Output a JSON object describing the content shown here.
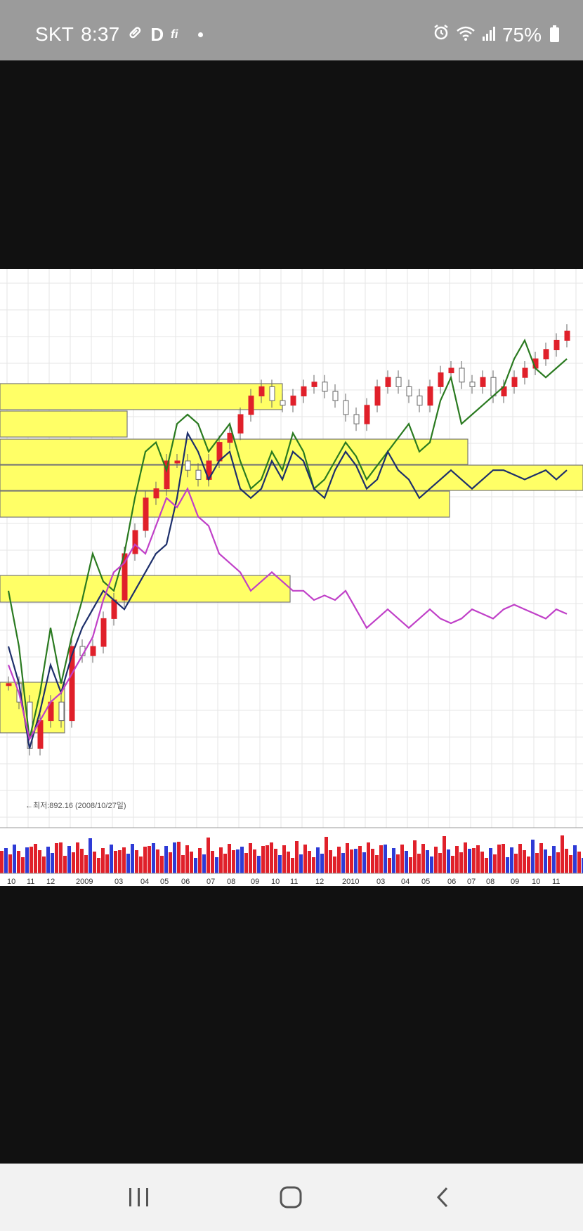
{
  "status_bar": {
    "carrier": "SKT",
    "time": "8:37",
    "letter_icon": "D",
    "fi_icon": "fi",
    "battery": "75%",
    "icons": [
      "link-icon",
      "d-app-icon",
      "fi-icon",
      "dot-icon",
      "alarm-icon",
      "wifi-icon",
      "signal-icon",
      "battery-icon"
    ]
  },
  "colors": {
    "up_candle": "#e0202a",
    "down_candle": "#2e3bd6",
    "highlight": "#ffff66",
    "line_green": "#2a7a20",
    "line_navy": "#1d2f6b",
    "line_magenta": "#c040c8"
  },
  "chart_data": {
    "type": "line",
    "annotation": "←최저:892.16 (2008/10/27일)",
    "x_tick_labels": [
      "10",
      "11",
      "12",
      "2009",
      "03",
      "04",
      "05",
      "06",
      "07",
      "08",
      "09",
      "10",
      "11",
      "12",
      "2010",
      "03",
      "04",
      "05",
      "06",
      "07",
      "08",
      "09",
      "10",
      "11"
    ],
    "series": [
      {
        "values": [
          0.22,
          0.18,
          0.08,
          0.14,
          0.18,
          0.14,
          0.3,
          0.28,
          0.3,
          0.36,
          0.4,
          0.5,
          0.55,
          0.62,
          0.64,
          0.7,
          0.7,
          0.68,
          0.66,
          0.7,
          0.74,
          0.76,
          0.8,
          0.84,
          0.86,
          0.83,
          0.82,
          0.84,
          0.86,
          0.87,
          0.85,
          0.83,
          0.8,
          0.78,
          0.82,
          0.86,
          0.88,
          0.86,
          0.84,
          0.82,
          0.86,
          0.89,
          0.9,
          0.87,
          0.86,
          0.88,
          0.84,
          0.86,
          0.88,
          0.9,
          0.92,
          0.94,
          0.96,
          0.98
        ]
      },
      {
        "values": [
          0.42,
          0.3,
          0.1,
          0.2,
          0.34,
          0.22,
          0.32,
          0.4,
          0.5,
          0.44,
          0.42,
          0.5,
          0.62,
          0.72,
          0.74,
          0.68,
          0.78,
          0.8,
          0.78,
          0.72,
          0.75,
          0.78,
          0.7,
          0.64,
          0.66,
          0.72,
          0.68,
          0.76,
          0.72,
          0.64,
          0.66,
          0.7,
          0.74,
          0.71,
          0.66,
          0.69,
          0.72,
          0.75,
          0.78,
          0.72,
          0.74,
          0.83,
          0.88,
          0.78,
          0.8,
          0.82,
          0.84,
          0.86,
          0.92,
          0.96,
          0.9,
          0.88,
          0.9,
          0.92
        ]
      },
      {
        "values": [
          0.3,
          0.22,
          0.08,
          0.16,
          0.26,
          0.2,
          0.28,
          0.34,
          0.38,
          0.42,
          0.4,
          0.38,
          0.42,
          0.46,
          0.5,
          0.52,
          0.62,
          0.76,
          0.72,
          0.66,
          0.7,
          0.72,
          0.64,
          0.62,
          0.64,
          0.7,
          0.66,
          0.72,
          0.7,
          0.64,
          0.62,
          0.68,
          0.72,
          0.69,
          0.64,
          0.66,
          0.72,
          0.68,
          0.66,
          0.62,
          0.64,
          0.66,
          0.68,
          0.66,
          0.64,
          0.66,
          0.68,
          0.68,
          0.67,
          0.66,
          0.67,
          0.68,
          0.66,
          0.68
        ]
      },
      {
        "values": [
          0.26,
          0.2,
          0.1,
          0.14,
          0.18,
          0.2,
          0.24,
          0.28,
          0.32,
          0.4,
          0.46,
          0.48,
          0.52,
          0.5,
          0.56,
          0.62,
          0.6,
          0.64,
          0.58,
          0.56,
          0.5,
          0.48,
          0.46,
          0.42,
          0.44,
          0.46,
          0.44,
          0.42,
          0.42,
          0.4,
          0.41,
          0.4,
          0.42,
          0.38,
          0.34,
          0.36,
          0.38,
          0.36,
          0.34,
          0.36,
          0.38,
          0.36,
          0.35,
          0.36,
          0.38,
          0.37,
          0.36,
          0.38,
          0.39,
          0.38,
          0.37,
          0.36,
          0.38,
          0.37
        ]
      }
    ]
  },
  "nav_bar": {
    "icons": [
      "recent-apps-icon",
      "home-icon",
      "back-icon"
    ]
  }
}
